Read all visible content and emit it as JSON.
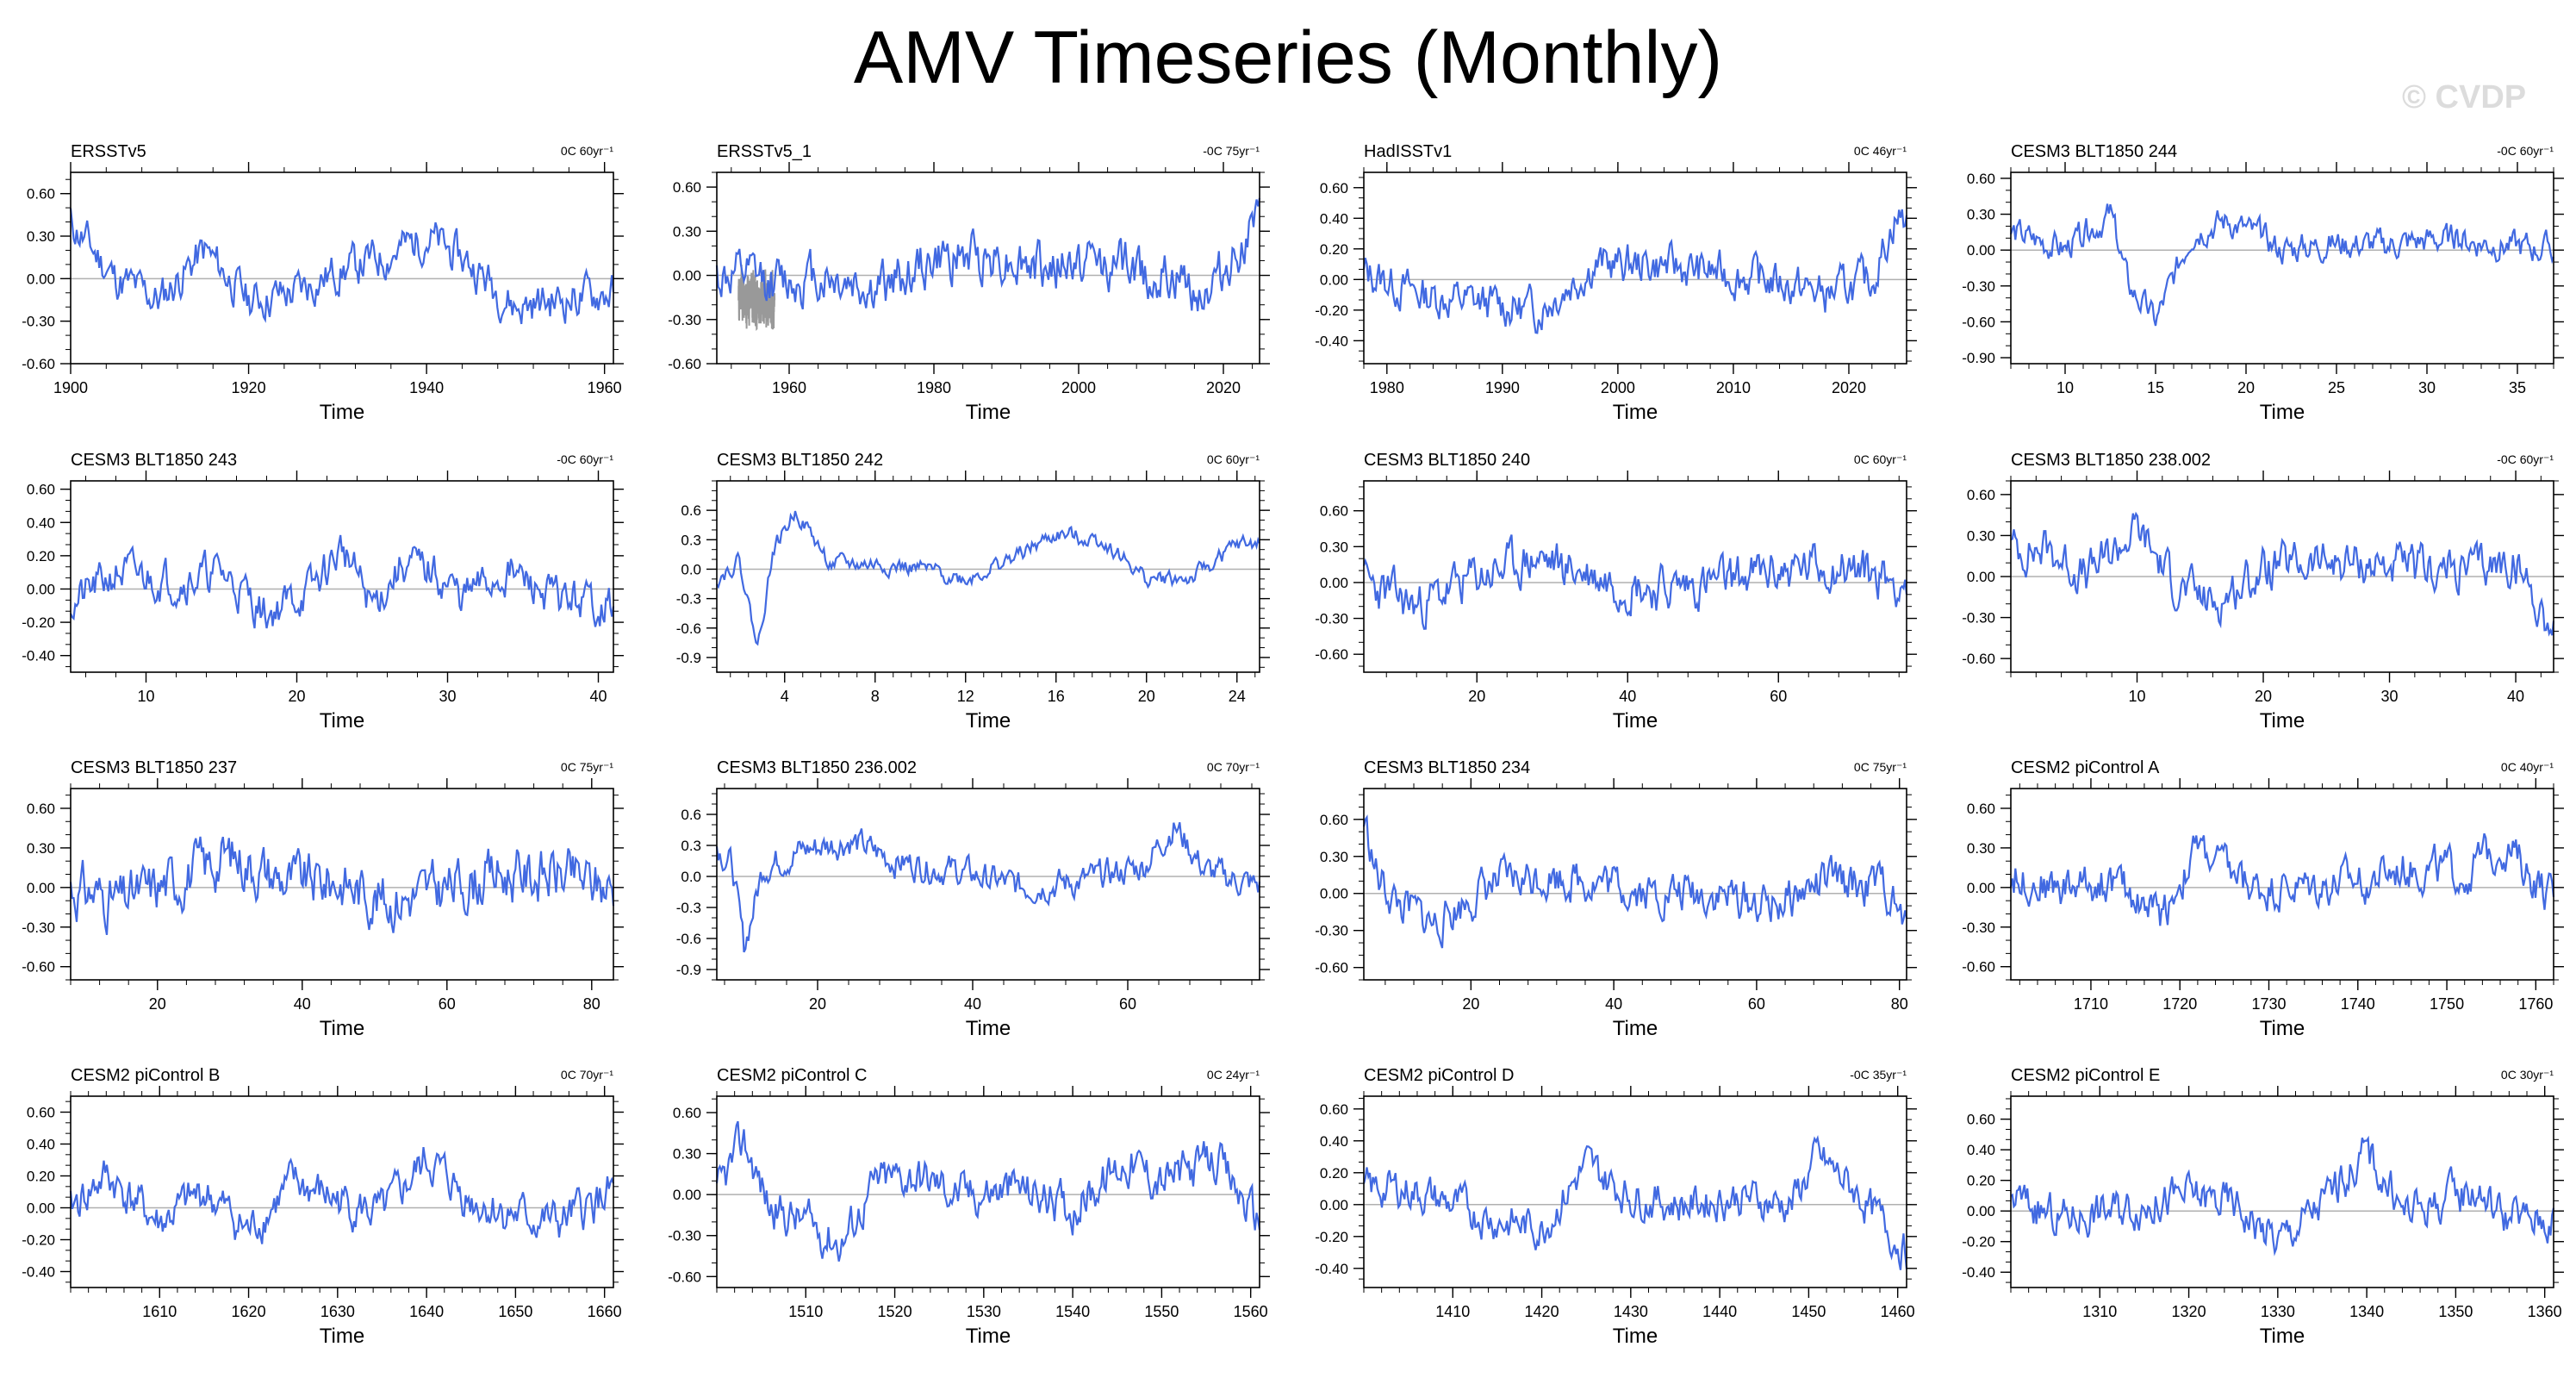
{
  "figure": {
    "title": "AMV Timeseries (Monthly)",
    "watermark": "© CVDP",
    "line_color": "#4169e1",
    "secondary_color": "#999999",
    "axes_color": "#000000"
  },
  "chart_data": [
    {
      "type": "line",
      "title": "ERSSTv5",
      "stats": "0C 60yr⁻¹",
      "xlabel": "Time",
      "xlim": [
        1900,
        1961
      ],
      "xticks": [
        1900,
        1920,
        1940,
        1960
      ],
      "ylim": [
        -0.6,
        0.75
      ],
      "yticks": [
        -0.6,
        -0.3,
        0.0,
        0.3,
        0.6
      ],
      "yfmt": 2,
      "seed": 11,
      "x_points": [
        1900,
        1905,
        1910,
        1915,
        1920,
        1925,
        1930,
        1935,
        1940,
        1945,
        1950,
        1955,
        1960
      ],
      "y_points": [
        0.4,
        0.0,
        -0.15,
        0.2,
        -0.15,
        -0.1,
        0.05,
        0.15,
        0.3,
        0.1,
        -0.2,
        -0.15,
        -0.1
      ],
      "noise": 0.12,
      "base": 0.0
    },
    {
      "type": "line",
      "title": "ERSSTv5_1",
      "stats": "-0C 75yr⁻¹",
      "xlabel": "Time",
      "xlim": [
        1950,
        2025
      ],
      "xticks": [
        1960,
        1980,
        2000,
        2020
      ],
      "ylim": [
        -0.6,
        0.7
      ],
      "yticks": [
        -0.6,
        -0.3,
        0.0,
        0.3,
        0.6
      ],
      "yfmt": 2,
      "seed": 12,
      "x_points": [
        1950,
        1958,
        1965,
        1972,
        1980,
        1988,
        1995,
        2003,
        2010,
        2018,
        2024
      ],
      "y_points": [
        0.0,
        -0.05,
        0.0,
        -0.1,
        0.1,
        0.15,
        0.05,
        0.1,
        0.0,
        -0.1,
        0.3
      ],
      "noise": 0.14,
      "base": 0.0,
      "secondary": {
        "xlim": [
          1953,
          1958
        ],
        "noise": 0.12
      }
    },
    {
      "type": "line",
      "title": "HadISSTv1",
      "stats": "0C 46yr⁻¹",
      "xlabel": "Time",
      "xlim": [
        1978,
        2025
      ],
      "xticks": [
        1980,
        1990,
        2000,
        2010,
        2020
      ],
      "ylim": [
        -0.55,
        0.7
      ],
      "yticks": [
        -0.4,
        -0.2,
        0.0,
        0.2,
        0.4,
        0.6
      ],
      "yfmt": 2,
      "seed": 13,
      "x_points": [
        1978,
        1983,
        1988,
        1993,
        1998,
        2003,
        2008,
        2013,
        2018,
        2022,
        2024
      ],
      "y_points": [
        0.05,
        -0.1,
        -0.15,
        -0.2,
        0.1,
        0.1,
        0.05,
        0.0,
        -0.1,
        0.0,
        0.4
      ],
      "noise": 0.11,
      "base": 0.0
    },
    {
      "type": "line",
      "title": "CESM3 BLT1850 244",
      "stats": "-0C 60yr⁻¹",
      "xlabel": "Time",
      "xlim": [
        7,
        37
      ],
      "xticks": [
        10,
        15,
        20,
        25,
        30,
        35
      ],
      "ylim": [
        -0.95,
        0.65
      ],
      "yticks": [
        -0.9,
        -0.6,
        -0.3,
        0.0,
        0.3,
        0.6
      ],
      "yfmt": 2,
      "seed": 14,
      "x_points": [
        7,
        10,
        12.5,
        13.5,
        15,
        17,
        19,
        22,
        25,
        28,
        31,
        34,
        37
      ],
      "y_points": [
        0.15,
        0.0,
        0.3,
        -0.3,
        -0.6,
        0.15,
        0.25,
        0.0,
        0.05,
        0.05,
        0.1,
        0.05,
        0.0
      ],
      "noise": 0.1,
      "base": 0.0
    },
    {
      "type": "line",
      "title": "CESM3 BLT1850 243",
      "stats": "-0C 60yr⁻¹",
      "xlabel": "Time",
      "xlim": [
        5,
        41
      ],
      "xticks": [
        10,
        20,
        30,
        40
      ],
      "ylim": [
        -0.5,
        0.65
      ],
      "yticks": [
        -0.4,
        -0.2,
        0.0,
        0.2,
        0.4,
        0.6
      ],
      "yfmt": 2,
      "seed": 21,
      "x_points": [
        5,
        8,
        12,
        15,
        18,
        21,
        23,
        25,
        27,
        29,
        31,
        34,
        37,
        41
      ],
      "y_points": [
        -0.1,
        0.1,
        0.05,
        0.1,
        -0.15,
        0.0,
        0.25,
        -0.1,
        0.15,
        0.1,
        -0.05,
        0.1,
        -0.05,
        -0.1
      ],
      "noise": 0.1,
      "base": 0.0
    },
    {
      "type": "line",
      "title": "CESM3 BLT1850 242",
      "stats": "0C 60yr⁻¹",
      "xlabel": "Time",
      "xlim": [
        1,
        25
      ],
      "xticks": [
        4,
        8,
        12,
        16,
        20,
        24
      ],
      "ylim": [
        -1.05,
        0.9
      ],
      "yticks": [
        -0.9,
        -0.6,
        -0.3,
        0.0,
        0.3,
        0.6
      ],
      "yfmt": 1,
      "seed": 22,
      "x_points": [
        1,
        2,
        2.8,
        3.5,
        4.5,
        6,
        8,
        10,
        12,
        14,
        16,
        18,
        20,
        22,
        24
      ],
      "y_points": [
        -0.1,
        0.1,
        -0.8,
        0.2,
        0.6,
        0.05,
        0.05,
        0.0,
        -0.1,
        0.1,
        0.35,
        0.3,
        -0.1,
        -0.1,
        0.25
      ],
      "noise": 0.07,
      "base": 0.0
    },
    {
      "type": "line",
      "title": "CESM3 BLT1850 240",
      "stats": "0C 60yr⁻¹",
      "xlabel": "Time",
      "xlim": [
        5,
        77
      ],
      "xticks": [
        20,
        40,
        60
      ],
      "ylim": [
        -0.75,
        0.85
      ],
      "yticks": [
        -0.6,
        -0.3,
        0.0,
        0.3,
        0.6
      ],
      "yfmt": 2,
      "seed": 23,
      "x_points": [
        5,
        12,
        20,
        28,
        36,
        44,
        52,
        60,
        68,
        77
      ],
      "y_points": [
        0.0,
        -0.2,
        0.05,
        0.2,
        0.05,
        -0.05,
        0.0,
        0.1,
        0.15,
        0.0
      ],
      "noise": 0.16,
      "base": 0.0
    },
    {
      "type": "line",
      "title": "CESM3 BLT1850 238.002",
      "stats": "-0C 60yr⁻¹",
      "xlabel": "Time",
      "xlim": [
        0,
        43
      ],
      "xticks": [
        10,
        20,
        30,
        40
      ],
      "ylim": [
        -0.7,
        0.7
      ],
      "yticks": [
        -0.6,
        -0.3,
        0.0,
        0.3,
        0.6
      ],
      "yfmt": 2,
      "seed": 24,
      "x_points": [
        0,
        3,
        6,
        10,
        13,
        16,
        20,
        24,
        28,
        32,
        36,
        40,
        43
      ],
      "y_points": [
        0.2,
        0.2,
        0.0,
        0.35,
        -0.05,
        -0.2,
        0.05,
        0.1,
        0.1,
        0.05,
        0.05,
        0.1,
        -0.4
      ],
      "noise": 0.13,
      "base": 0.0
    },
    {
      "type": "line",
      "title": "CESM3 BLT1850 237",
      "stats": "0C 75yr⁻¹",
      "xlabel": "Time",
      "xlim": [
        8,
        83
      ],
      "xticks": [
        20,
        40,
        60,
        80
      ],
      "ylim": [
        -0.7,
        0.75
      ],
      "yticks": [
        -0.6,
        -0.3,
        0.0,
        0.3,
        0.6
      ],
      "yfmt": 2,
      "seed": 31,
      "x_points": [
        8,
        15,
        22,
        30,
        38,
        45,
        52,
        60,
        67,
        75,
        83
      ],
      "y_points": [
        0.0,
        -0.1,
        0.05,
        0.25,
        0.05,
        0.05,
        -0.1,
        0.0,
        0.1,
        0.1,
        0.0
      ],
      "noise": 0.17,
      "base": 0.0
    },
    {
      "type": "line",
      "title": "CESM3 BLT1850 236.002",
      "stats": "0C 70yr⁻¹",
      "xlabel": "Time",
      "xlim": [
        7,
        77
      ],
      "xticks": [
        20,
        40,
        60
      ],
      "ylim": [
        -1.0,
        0.85
      ],
      "yticks": [
        -0.9,
        -0.6,
        -0.3,
        0.0,
        0.3,
        0.6
      ],
      "yfmt": 1,
      "seed": 32,
      "x_points": [
        7,
        9,
        10.5,
        13,
        18,
        24,
        30,
        38,
        46,
        54,
        62,
        66,
        70,
        77
      ],
      "y_points": [
        0.3,
        0.1,
        -0.7,
        0.1,
        0.25,
        0.35,
        0.15,
        0.05,
        -0.1,
        -0.05,
        0.1,
        0.5,
        0.05,
        -0.1
      ],
      "noise": 0.12,
      "base": 0.0
    },
    {
      "type": "line",
      "title": "CESM3 BLT1850 234",
      "stats": "0C 75yr⁻¹",
      "xlabel": "Time",
      "xlim": [
        5,
        81
      ],
      "xticks": [
        20,
        40,
        60,
        80
      ],
      "ylim": [
        -0.7,
        0.85
      ],
      "yticks": [
        -0.6,
        -0.3,
        0.0,
        0.3,
        0.6
      ],
      "yfmt": 2,
      "seed": 33,
      "x_points": [
        5,
        7,
        10,
        15,
        22,
        30,
        38,
        46,
        54,
        62,
        70,
        78,
        81
      ],
      "y_points": [
        0.6,
        0.1,
        -0.1,
        -0.25,
        0.05,
        0.15,
        0.1,
        0.0,
        0.0,
        -0.1,
        0.1,
        0.05,
        -0.3
      ],
      "noise": 0.14,
      "base": 0.0
    },
    {
      "type": "line",
      "title": "CESM2 piControl A",
      "stats": "0C 40yr⁻¹",
      "xlabel": "Time",
      "xlim": [
        1701,
        1762
      ],
      "xticks": [
        1710,
        1720,
        1730,
        1740,
        1750,
        1760
      ],
      "ylim": [
        -0.7,
        0.75
      ],
      "yticks": [
        -0.6,
        -0.3,
        0.0,
        0.3,
        0.6
      ],
      "yfmt": 2,
      "seed": 34,
      "x_points": [
        1701,
        1706,
        1712,
        1718,
        1722,
        1728,
        1734,
        1740,
        1746,
        1752,
        1756,
        1762
      ],
      "y_points": [
        0.1,
        0.0,
        0.05,
        -0.2,
        0.3,
        0.0,
        0.0,
        0.05,
        0.15,
        0.1,
        0.35,
        -0.1
      ],
      "noise": 0.13,
      "base": 0.0
    },
    {
      "type": "line",
      "title": "CESM2 piControl B",
      "stats": "0C 70yr⁻¹",
      "xlabel": "Time",
      "xlim": [
        1600,
        1661
      ],
      "xticks": [
        1610,
        1620,
        1630,
        1640,
        1650,
        1660
      ],
      "ylim": [
        -0.5,
        0.7
      ],
      "yticks": [
        -0.4,
        -0.2,
        0.0,
        0.2,
        0.4,
        0.6
      ],
      "yfmt": 2,
      "seed": 41,
      "x_points": [
        1600,
        1604,
        1610,
        1615,
        1620,
        1625,
        1630,
        1635,
        1640,
        1645,
        1650,
        1655,
        1661
      ],
      "y_points": [
        0.0,
        0.2,
        -0.1,
        0.1,
        -0.15,
        0.15,
        0.05,
        -0.05,
        0.3,
        0.05,
        -0.05,
        -0.1,
        0.1
      ],
      "noise": 0.11,
      "base": 0.0
    },
    {
      "type": "line",
      "title": "CESM2 piControl C",
      "stats": "0C 24yr⁻¹",
      "xlabel": "Time",
      "xlim": [
        1500,
        1561
      ],
      "xticks": [
        1510,
        1520,
        1530,
        1540,
        1550,
        1560
      ],
      "ylim": [
        -0.68,
        0.72
      ],
      "yticks": [
        -0.6,
        -0.3,
        0.0,
        0.3,
        0.6
      ],
      "yfmt": 2,
      "seed": 42,
      "x_points": [
        1500,
        1503,
        1506,
        1510,
        1514,
        1518,
        1522,
        1528,
        1534,
        1540,
        1546,
        1550,
        1556,
        1561
      ],
      "y_points": [
        0.0,
        0.4,
        -0.1,
        -0.2,
        -0.35,
        0.1,
        0.15,
        0.0,
        0.05,
        -0.1,
        0.25,
        0.1,
        0.25,
        -0.2
      ],
      "noise": 0.13,
      "base": 0.0
    },
    {
      "type": "line",
      "title": "CESM2 piControl D",
      "stats": "-0C 35yr⁻¹",
      "xlabel": "Time",
      "xlim": [
        1400,
        1461
      ],
      "xticks": [
        1410,
        1420,
        1430,
        1440,
        1450,
        1460
      ],
      "ylim": [
        -0.52,
        0.68
      ],
      "yticks": [
        -0.4,
        -0.2,
        0.0,
        0.2,
        0.4,
        0.6
      ],
      "yfmt": 2,
      "seed": 43,
      "x_points": [
        1400,
        1405,
        1410,
        1415,
        1420,
        1425,
        1430,
        1436,
        1442,
        1448,
        1451,
        1455,
        1461
      ],
      "y_points": [
        0.1,
        0.1,
        0.0,
        -0.1,
        -0.15,
        0.25,
        0.05,
        0.0,
        0.05,
        0.0,
        0.3,
        0.1,
        -0.3
      ],
      "noise": 0.1,
      "base": 0.0
    },
    {
      "type": "line",
      "title": "CESM2 piControl E",
      "stats": "0C 30yr⁻¹",
      "xlabel": "Time",
      "xlim": [
        1300,
        1361
      ],
      "xticks": [
        1310,
        1320,
        1330,
        1340,
        1350,
        1360
      ],
      "ylim": [
        -0.5,
        0.75
      ],
      "yticks": [
        -0.4,
        -0.2,
        0.0,
        0.2,
        0.4,
        0.6
      ],
      "yfmt": 2,
      "seed": 44,
      "x_points": [
        1300,
        1305,
        1310,
        1315,
        1320,
        1325,
        1330,
        1335,
        1340,
        1344,
        1348,
        1352,
        1356,
        1361
      ],
      "y_points": [
        0.1,
        -0.05,
        0.0,
        0.05,
        0.1,
        0.05,
        -0.2,
        0.05,
        0.4,
        0.0,
        0.05,
        0.15,
        -0.05,
        -0.05
      ],
      "noise": 0.11,
      "base": 0.0
    }
  ]
}
